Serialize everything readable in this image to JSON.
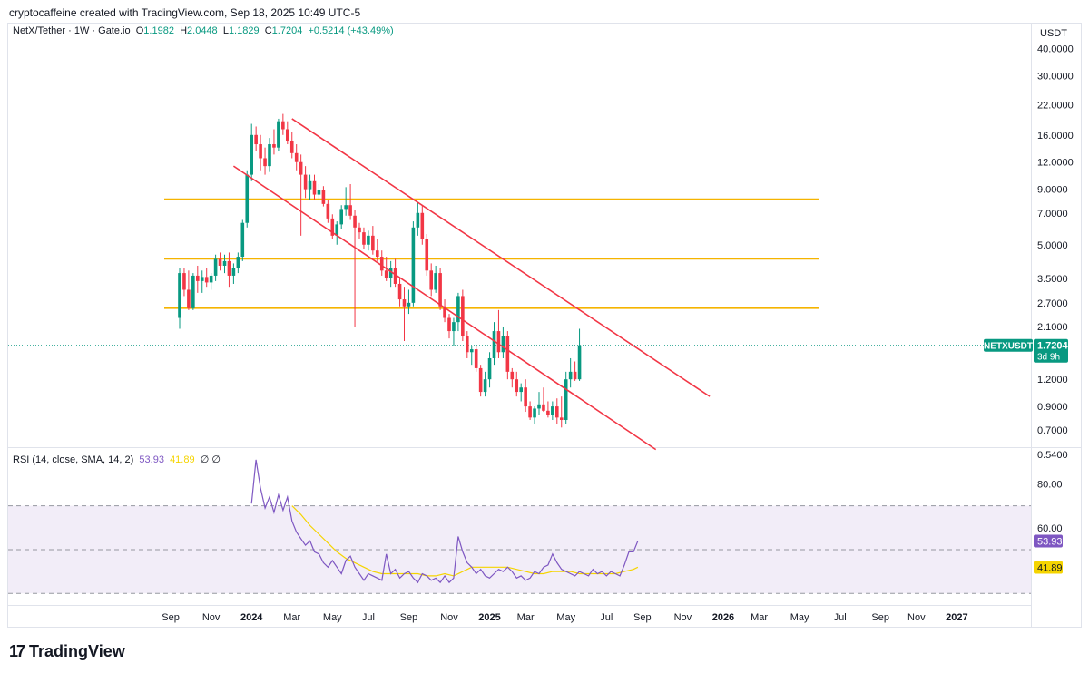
{
  "header": {
    "attribution": "cryptocaffeine created with TradingView.com, Sep 18, 2025 10:49 UTC-5"
  },
  "legend": {
    "symbol": "NetX/Tether · 1W · Gate.io",
    "open_label": "O",
    "open": "1.1982",
    "high_label": "H",
    "high": "2.0448",
    "low_label": "L",
    "low": "1.1829",
    "close_label": "C",
    "close": "1.7204",
    "change": "+0.5214 (+43.49%)"
  },
  "axis_unit": "USDT",
  "price_badge": {
    "symbol": "NETXUSDT",
    "price": "1.7204",
    "countdown": "3d 9h"
  },
  "rsi": {
    "label": "RSI (14, close, SMA, 14, 2)",
    "value": "53.93",
    "sma": "41.89",
    "tail": "∅ ∅"
  },
  "brand": {
    "logo": "17",
    "name": "TradingView"
  },
  "colors": {
    "up": "#089981",
    "down": "#f23645",
    "channel": "#f23645",
    "level": "#f5b400",
    "rsi": "#7e57c2",
    "rsi_sma": "#f5d400",
    "rsi_band": "#ede7f6"
  },
  "chart_data": {
    "type": "candlestick",
    "scale": "log",
    "price_ticks": [
      {
        "v": 40,
        "t": "40.0000"
      },
      {
        "v": 30,
        "t": "30.0000"
      },
      {
        "v": 22,
        "t": "22.0000"
      },
      {
        "v": 16,
        "t": "16.0000"
      },
      {
        "v": 12,
        "t": "12.0000"
      },
      {
        "v": 9,
        "t": "9.0000"
      },
      {
        "v": 7,
        "t": "7.0000"
      },
      {
        "v": 5,
        "t": "5.0000"
      },
      {
        "v": 3.5,
        "t": "3.5000"
      },
      {
        "v": 2.7,
        "t": "2.7000"
      },
      {
        "v": 2.1,
        "t": "2.1000"
      },
      {
        "v": 1.2,
        "t": "1.2000"
      },
      {
        "v": 0.9,
        "t": "0.9000"
      },
      {
        "v": 0.7,
        "t": "0.7000"
      },
      {
        "v": 0.54,
        "t": "0.5400"
      }
    ],
    "rsi_ticks": [
      {
        "v": 80,
        "t": "80.00"
      },
      {
        "v": 60,
        "t": "60.00"
      }
    ],
    "rsi_bands": {
      "upper": 70,
      "middle": 50,
      "lower": 30
    },
    "time_ticks": [
      {
        "t": "Sep",
        "w": -2,
        "bold": false
      },
      {
        "t": "Nov",
        "w": 7,
        "bold": false
      },
      {
        "t": "2024",
        "w": 16,
        "bold": true
      },
      {
        "t": "Mar",
        "w": 25,
        "bold": false
      },
      {
        "t": "May",
        "w": 34,
        "bold": false
      },
      {
        "t": "Jul",
        "w": 42,
        "bold": false
      },
      {
        "t": "Sep",
        "w": 51,
        "bold": false
      },
      {
        "t": "Nov",
        "w": 60,
        "bold": false
      },
      {
        "t": "2025",
        "w": 69,
        "bold": true
      },
      {
        "t": "Mar",
        "w": 77,
        "bold": false
      },
      {
        "t": "May",
        "w": 86,
        "bold": false
      },
      {
        "t": "Jul",
        "w": 95,
        "bold": false
      },
      {
        "t": "Sep",
        "w": 103,
        "bold": false
      },
      {
        "t": "Nov",
        "w": 112,
        "bold": false
      },
      {
        "t": "2026",
        "w": 121,
        "bold": true
      },
      {
        "t": "Mar",
        "w": 129,
        "bold": false
      },
      {
        "t": "May",
        "w": 138,
        "bold": false
      },
      {
        "t": "Jul",
        "w": 147,
        "bold": false
      },
      {
        "t": "Sep",
        "w": 156,
        "bold": false
      },
      {
        "t": "Nov",
        "w": 164,
        "bold": false
      },
      {
        "t": "2027",
        "w": 173,
        "bold": true
      }
    ],
    "horizontal_levels": [
      8.1,
      4.3,
      2.55
    ],
    "channel_lines": [
      {
        "from": {
          "w": 25,
          "price": 19.0
        },
        "to": {
          "w": 118,
          "price": 1.0
        }
      },
      {
        "from": {
          "w": 12,
          "price": 11.5
        },
        "to": {
          "w": 106,
          "price": 0.57
        }
      }
    ],
    "current_price": 1.7204,
    "candles": [
      {
        "o": 2.3,
        "h": 3.9,
        "l": 2.05,
        "c": 3.7
      },
      {
        "o": 3.7,
        "h": 3.9,
        "l": 2.9,
        "c": 3.1
      },
      {
        "o": 3.1,
        "h": 3.8,
        "l": 2.5,
        "c": 2.55
      },
      {
        "o": 2.55,
        "h": 3.7,
        "l": 2.5,
        "c": 3.6
      },
      {
        "o": 3.6,
        "h": 4.0,
        "l": 3.0,
        "c": 3.4
      },
      {
        "o": 3.4,
        "h": 3.8,
        "l": 3.0,
        "c": 3.55
      },
      {
        "o": 3.55,
        "h": 3.9,
        "l": 3.2,
        "c": 3.35
      },
      {
        "o": 3.35,
        "h": 3.7,
        "l": 3.1,
        "c": 3.6
      },
      {
        "o": 3.6,
        "h": 4.5,
        "l": 3.4,
        "c": 4.3
      },
      {
        "o": 4.3,
        "h": 4.6,
        "l": 3.8,
        "c": 4.0
      },
      {
        "o": 4.0,
        "h": 4.5,
        "l": 3.7,
        "c": 4.2
      },
      {
        "o": 4.2,
        "h": 4.6,
        "l": 3.2,
        "c": 3.6
      },
      {
        "o": 3.6,
        "h": 4.1,
        "l": 3.3,
        "c": 3.9
      },
      {
        "o": 3.9,
        "h": 4.6,
        "l": 3.7,
        "c": 4.4
      },
      {
        "o": 4.4,
        "h": 6.5,
        "l": 4.2,
        "c": 6.3
      },
      {
        "o": 6.3,
        "h": 11.0,
        "l": 6.0,
        "c": 10.5
      },
      {
        "o": 10.5,
        "h": 18.0,
        "l": 9.8,
        "c": 16.0
      },
      {
        "o": 16.0,
        "h": 17.5,
        "l": 13.5,
        "c": 14.5
      },
      {
        "o": 14.5,
        "h": 16.0,
        "l": 11.0,
        "c": 12.5
      },
      {
        "o": 12.5,
        "h": 14.0,
        "l": 10.5,
        "c": 11.5
      },
      {
        "o": 11.5,
        "h": 15.5,
        "l": 10.8,
        "c": 14.5
      },
      {
        "o": 14.5,
        "h": 17.0,
        "l": 13.0,
        "c": 14.0
      },
      {
        "o": 14.0,
        "h": 19.0,
        "l": 13.5,
        "c": 18.5
      },
      {
        "o": 18.5,
        "h": 20.0,
        "l": 16.0,
        "c": 17.0
      },
      {
        "o": 17.0,
        "h": 18.5,
        "l": 14.5,
        "c": 15.0
      },
      {
        "o": 15.0,
        "h": 16.5,
        "l": 12.5,
        "c": 13.2
      },
      {
        "o": 13.2,
        "h": 14.5,
        "l": 11.0,
        "c": 12.0
      },
      {
        "o": 12.0,
        "h": 13.0,
        "l": 5.5,
        "c": 10.5
      },
      {
        "o": 10.5,
        "h": 11.5,
        "l": 8.2,
        "c": 9.0
      },
      {
        "o": 9.0,
        "h": 10.5,
        "l": 8.0,
        "c": 9.8
      },
      {
        "o": 9.8,
        "h": 10.5,
        "l": 8.0,
        "c": 8.5
      },
      {
        "o": 8.5,
        "h": 9.5,
        "l": 8.0,
        "c": 8.9
      },
      {
        "o": 8.9,
        "h": 9.3,
        "l": 7.5,
        "c": 7.7
      },
      {
        "o": 7.7,
        "h": 8.0,
        "l": 6.3,
        "c": 6.6
      },
      {
        "o": 6.6,
        "h": 6.9,
        "l": 5.3,
        "c": 5.5
      },
      {
        "o": 5.5,
        "h": 6.4,
        "l": 5.0,
        "c": 6.2
      },
      {
        "o": 6.2,
        "h": 7.6,
        "l": 5.9,
        "c": 7.3
      },
      {
        "o": 7.3,
        "h": 9.2,
        "l": 6.8,
        "c": 7.6
      },
      {
        "o": 7.6,
        "h": 9.5,
        "l": 6.5,
        "c": 6.8
      },
      {
        "o": 6.8,
        "h": 7.2,
        "l": 2.1,
        "c": 6.0
      },
      {
        "o": 6.0,
        "h": 6.3,
        "l": 5.3,
        "c": 5.7
      },
      {
        "o": 5.7,
        "h": 6.0,
        "l": 4.8,
        "c": 5.0
      },
      {
        "o": 5.0,
        "h": 5.8,
        "l": 4.7,
        "c": 5.5
      },
      {
        "o": 5.5,
        "h": 6.1,
        "l": 4.5,
        "c": 4.7
      },
      {
        "o": 4.7,
        "h": 5.3,
        "l": 4.2,
        "c": 4.4
      },
      {
        "o": 4.4,
        "h": 4.7,
        "l": 3.6,
        "c": 3.8
      },
      {
        "o": 3.8,
        "h": 4.4,
        "l": 3.4,
        "c": 3.5
      },
      {
        "o": 3.5,
        "h": 4.2,
        "l": 3.2,
        "c": 3.9
      },
      {
        "o": 3.9,
        "h": 4.3,
        "l": 3.2,
        "c": 3.3
      },
      {
        "o": 3.3,
        "h": 3.5,
        "l": 2.6,
        "c": 2.8
      },
      {
        "o": 2.8,
        "h": 3.2,
        "l": 1.8,
        "c": 2.6
      },
      {
        "o": 2.6,
        "h": 3.1,
        "l": 2.4,
        "c": 2.7
      },
      {
        "o": 2.7,
        "h": 6.4,
        "l": 2.6,
        "c": 6.0
      },
      {
        "o": 6.0,
        "h": 7.8,
        "l": 5.5,
        "c": 7.0
      },
      {
        "o": 7.0,
        "h": 7.6,
        "l": 5.0,
        "c": 5.3
      },
      {
        "o": 5.3,
        "h": 5.6,
        "l": 3.6,
        "c": 3.8
      },
      {
        "o": 3.8,
        "h": 4.1,
        "l": 2.9,
        "c": 3.1
      },
      {
        "o": 3.1,
        "h": 4.0,
        "l": 3.0,
        "c": 3.7
      },
      {
        "o": 3.7,
        "h": 3.9,
        "l": 2.5,
        "c": 2.6
      },
      {
        "o": 2.6,
        "h": 2.8,
        "l": 2.2,
        "c": 2.3
      },
      {
        "o": 2.3,
        "h": 2.4,
        "l": 1.85,
        "c": 2.0
      },
      {
        "o": 2.0,
        "h": 2.3,
        "l": 1.7,
        "c": 2.2
      },
      {
        "o": 2.2,
        "h": 3.0,
        "l": 2.0,
        "c": 2.9
      },
      {
        "o": 2.9,
        "h": 3.1,
        "l": 1.8,
        "c": 1.9
      },
      {
        "o": 1.9,
        "h": 2.0,
        "l": 1.5,
        "c": 1.6
      },
      {
        "o": 1.6,
        "h": 1.7,
        "l": 1.4,
        "c": 1.65
      },
      {
        "o": 1.65,
        "h": 1.7,
        "l": 1.3,
        "c": 1.35
      },
      {
        "o": 1.35,
        "h": 1.4,
        "l": 1.0,
        "c": 1.05
      },
      {
        "o": 1.05,
        "h": 1.3,
        "l": 1.0,
        "c": 1.2
      },
      {
        "o": 1.2,
        "h": 1.6,
        "l": 1.1,
        "c": 1.5
      },
      {
        "o": 1.5,
        "h": 2.2,
        "l": 1.4,
        "c": 2.0
      },
      {
        "o": 2.0,
        "h": 2.5,
        "l": 1.5,
        "c": 1.6
      },
      {
        "o": 1.6,
        "h": 2.1,
        "l": 1.5,
        "c": 1.9
      },
      {
        "o": 1.9,
        "h": 2.0,
        "l": 1.2,
        "c": 1.3
      },
      {
        "o": 1.3,
        "h": 1.35,
        "l": 1.1,
        "c": 1.2
      },
      {
        "o": 1.2,
        "h": 1.3,
        "l": 1.0,
        "c": 1.05
      },
      {
        "o": 1.05,
        "h": 1.15,
        "l": 0.95,
        "c": 1.1
      },
      {
        "o": 1.1,
        "h": 1.2,
        "l": 0.85,
        "c": 0.9
      },
      {
        "o": 0.9,
        "h": 0.95,
        "l": 0.78,
        "c": 0.8
      },
      {
        "o": 0.8,
        "h": 0.9,
        "l": 0.75,
        "c": 0.88
      },
      {
        "o": 0.88,
        "h": 1.05,
        "l": 0.82,
        "c": 0.92
      },
      {
        "o": 0.92,
        "h": 1.1,
        "l": 0.85,
        "c": 0.86
      },
      {
        "o": 0.86,
        "h": 0.95,
        "l": 0.8,
        "c": 0.82
      },
      {
        "o": 0.82,
        "h": 0.95,
        "l": 0.78,
        "c": 0.9
      },
      {
        "o": 0.9,
        "h": 0.98,
        "l": 0.75,
        "c": 0.8
      },
      {
        "o": 0.8,
        "h": 1.0,
        "l": 0.72,
        "c": 0.78
      },
      {
        "o": 0.78,
        "h": 1.3,
        "l": 0.75,
        "c": 1.2
      },
      {
        "o": 1.2,
        "h": 1.5,
        "l": 1.1,
        "c": 1.3
      },
      {
        "o": 1.3,
        "h": 1.45,
        "l": 1.18,
        "c": 1.2
      },
      {
        "o": 1.2,
        "h": 2.05,
        "l": 1.18,
        "c": 1.72
      }
    ],
    "rsi_series": [
      {
        "w": 16,
        "v": 71
      },
      {
        "w": 17,
        "v": 91
      },
      {
        "w": 18,
        "v": 78
      },
      {
        "w": 19,
        "v": 69
      },
      {
        "w": 20,
        "v": 74
      },
      {
        "w": 21,
        "v": 67
      },
      {
        "w": 22,
        "v": 75
      },
      {
        "w": 23,
        "v": 68
      },
      {
        "w": 24,
        "v": 74
      },
      {
        "w": 25,
        "v": 63
      },
      {
        "w": 26,
        "v": 58
      },
      {
        "w": 27,
        "v": 55
      },
      {
        "w": 28,
        "v": 52
      },
      {
        "w": 29,
        "v": 54
      },
      {
        "w": 30,
        "v": 49
      },
      {
        "w": 31,
        "v": 48
      },
      {
        "w": 32,
        "v": 44
      },
      {
        "w": 33,
        "v": 42
      },
      {
        "w": 34,
        "v": 45
      },
      {
        "w": 35,
        "v": 42
      },
      {
        "w": 36,
        "v": 39
      },
      {
        "w": 37,
        "v": 45
      },
      {
        "w": 38,
        "v": 47
      },
      {
        "w": 39,
        "v": 42
      },
      {
        "w": 40,
        "v": 39
      },
      {
        "w": 41,
        "v": 36
      },
      {
        "w": 42,
        "v": 39
      },
      {
        "w": 43,
        "v": 38
      },
      {
        "w": 44,
        "v": 37
      },
      {
        "w": 45,
        "v": 36
      },
      {
        "w": 46,
        "v": 48
      },
      {
        "w": 47,
        "v": 39
      },
      {
        "w": 48,
        "v": 41
      },
      {
        "w": 49,
        "v": 37
      },
      {
        "w": 50,
        "v": 39
      },
      {
        "w": 51,
        "v": 40
      },
      {
        "w": 52,
        "v": 37
      },
      {
        "w": 53,
        "v": 35
      },
      {
        "w": 54,
        "v": 39
      },
      {
        "w": 55,
        "v": 38
      },
      {
        "w": 56,
        "v": 36
      },
      {
        "w": 57,
        "v": 37
      },
      {
        "w": 58,
        "v": 35
      },
      {
        "w": 59,
        "v": 38
      },
      {
        "w": 60,
        "v": 35
      },
      {
        "w": 61,
        "v": 37
      },
      {
        "w": 62,
        "v": 56
      },
      {
        "w": 63,
        "v": 49
      },
      {
        "w": 64,
        "v": 44
      },
      {
        "w": 65,
        "v": 42
      },
      {
        "w": 66,
        "v": 39
      },
      {
        "w": 67,
        "v": 41
      },
      {
        "w": 68,
        "v": 38
      },
      {
        "w": 69,
        "v": 37
      },
      {
        "w": 70,
        "v": 39
      },
      {
        "w": 71,
        "v": 41
      },
      {
        "w": 72,
        "v": 40
      },
      {
        "w": 73,
        "v": 42
      },
      {
        "w": 74,
        "v": 40
      },
      {
        "w": 75,
        "v": 37
      },
      {
        "w": 76,
        "v": 38
      },
      {
        "w": 77,
        "v": 36
      },
      {
        "w": 78,
        "v": 37
      },
      {
        "w": 79,
        "v": 40
      },
      {
        "w": 80,
        "v": 39
      },
      {
        "w": 81,
        "v": 42
      },
      {
        "w": 82,
        "v": 43
      },
      {
        "w": 83,
        "v": 48
      },
      {
        "w": 84,
        "v": 44
      },
      {
        "w": 85,
        "v": 41
      },
      {
        "w": 86,
        "v": 40
      },
      {
        "w": 87,
        "v": 39
      },
      {
        "w": 88,
        "v": 38
      },
      {
        "w": 89,
        "v": 40
      },
      {
        "w": 90,
        "v": 39
      },
      {
        "w": 91,
        "v": 38
      },
      {
        "w": 92,
        "v": 41
      },
      {
        "w": 93,
        "v": 39
      },
      {
        "w": 94,
        "v": 40
      },
      {
        "w": 95,
        "v": 38
      },
      {
        "w": 96,
        "v": 40
      },
      {
        "w": 97,
        "v": 39
      },
      {
        "w": 98,
        "v": 38
      },
      {
        "w": 99,
        "v": 43
      },
      {
        "w": 100,
        "v": 49
      },
      {
        "w": 101,
        "v": 49
      },
      {
        "w": 102,
        "v": 54
      }
    ],
    "rsi_sma_series": [
      {
        "w": 25,
        "v": 70
      },
      {
        "w": 27,
        "v": 66
      },
      {
        "w": 29,
        "v": 61
      },
      {
        "w": 31,
        "v": 57
      },
      {
        "w": 33,
        "v": 53
      },
      {
        "w": 35,
        "v": 49
      },
      {
        "w": 37,
        "v": 46
      },
      {
        "w": 39,
        "v": 44
      },
      {
        "w": 41,
        "v": 42
      },
      {
        "w": 43,
        "v": 40
      },
      {
        "w": 45,
        "v": 39
      },
      {
        "w": 47,
        "v": 39
      },
      {
        "w": 49,
        "v": 39
      },
      {
        "w": 51,
        "v": 39
      },
      {
        "w": 53,
        "v": 39
      },
      {
        "w": 55,
        "v": 38
      },
      {
        "w": 57,
        "v": 38
      },
      {
        "w": 59,
        "v": 39
      },
      {
        "w": 61,
        "v": 38
      },
      {
        "w": 63,
        "v": 40
      },
      {
        "w": 65,
        "v": 42
      },
      {
        "w": 67,
        "v": 42
      },
      {
        "w": 69,
        "v": 42
      },
      {
        "w": 71,
        "v": 42
      },
      {
        "w": 73,
        "v": 42
      },
      {
        "w": 75,
        "v": 41
      },
      {
        "w": 77,
        "v": 40
      },
      {
        "w": 79,
        "v": 39
      },
      {
        "w": 81,
        "v": 39
      },
      {
        "w": 83,
        "v": 40
      },
      {
        "w": 85,
        "v": 40
      },
      {
        "w": 87,
        "v": 40
      },
      {
        "w": 89,
        "v": 39
      },
      {
        "w": 91,
        "v": 39
      },
      {
        "w": 93,
        "v": 39
      },
      {
        "w": 95,
        "v": 39
      },
      {
        "w": 97,
        "v": 39
      },
      {
        "w": 99,
        "v": 40
      },
      {
        "w": 101,
        "v": 41
      },
      {
        "w": 102,
        "v": 42
      }
    ]
  }
}
